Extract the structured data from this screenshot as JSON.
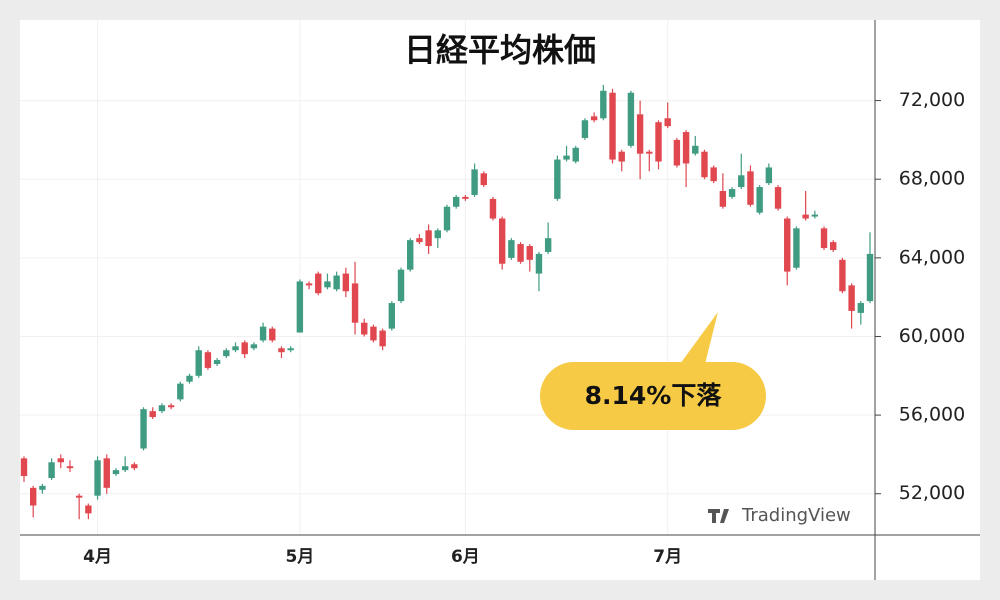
{
  "chart_data": {
    "type": "candlestick",
    "title": "日経平均株価",
    "annotation": "8.14%下落",
    "watermark": "TradingView",
    "up_color": "#3f9b81",
    "down_color": "#e0474f",
    "grid": true,
    "ylim": [
      49900,
      76100
    ],
    "yticks": [
      {
        "value": 52000,
        "label": "52,000"
      },
      {
        "value": 56000,
        "label": "56,000"
      },
      {
        "value": 60000,
        "label": "60,000"
      },
      {
        "value": 64000,
        "label": "64,000"
      },
      {
        "value": 68000,
        "label": "68,000"
      },
      {
        "value": 72000,
        "label": "72,000"
      }
    ],
    "categories": [
      null,
      null,
      null,
      null,
      null,
      null,
      null,
      null,
      "4月",
      null,
      null,
      null,
      null,
      null,
      null,
      null,
      null,
      null,
      null,
      null,
      null,
      null,
      null,
      null,
      null,
      null,
      null,
      null,
      null,
      null,
      "5月",
      null,
      null,
      null,
      null,
      null,
      null,
      null,
      null,
      null,
      null,
      null,
      null,
      null,
      null,
      null,
      null,
      null,
      "6月",
      null,
      null,
      null,
      null,
      null,
      null,
      null,
      null,
      null,
      null,
      null,
      null,
      null,
      null,
      null,
      null,
      null,
      null,
      null,
      null,
      null,
      "7月",
      null,
      null,
      null,
      null,
      null,
      null,
      null,
      null,
      null,
      null,
      null,
      null,
      null,
      null,
      null,
      null,
      null,
      null,
      null,
      null,
      null,
      null
    ],
    "ohlc": [
      [
        53800,
        53900,
        52600,
        52900
      ],
      [
        52300,
        52400,
        50800,
        51400
      ],
      [
        52200,
        52500,
        52000,
        52400
      ],
      [
        52800,
        53800,
        52700,
        53600
      ],
      [
        53800,
        54000,
        53300,
        53600
      ],
      [
        53400,
        53700,
        53100,
        53300
      ],
      [
        51900,
        52000,
        50700,
        51800
      ],
      [
        51400,
        51500,
        50700,
        51000
      ],
      [
        51900,
        53900,
        51700,
        53700
      ],
      [
        53800,
        54000,
        52000,
        52300
      ],
      [
        53000,
        53300,
        52900,
        53200
      ],
      [
        53200,
        53900,
        53100,
        53400
      ],
      [
        53500,
        53600,
        53200,
        53300
      ],
      [
        54300,
        56400,
        54200,
        56300
      ],
      [
        56200,
        56400,
        55800,
        55900
      ],
      [
        56200,
        56600,
        56100,
        56500
      ],
      [
        56500,
        56600,
        56300,
        56400
      ],
      [
        56800,
        57700,
        56700,
        57600
      ],
      [
        57700,
        58100,
        57600,
        58000
      ],
      [
        58000,
        59500,
        57900,
        59300
      ],
      [
        59200,
        59300,
        58300,
        58400
      ],
      [
        58600,
        58900,
        58500,
        58800
      ],
      [
        59000,
        59400,
        58900,
        59300
      ],
      [
        59300,
        59700,
        59200,
        59500
      ],
      [
        59700,
        59800,
        58900,
        59100
      ],
      [
        59400,
        59700,
        59300,
        59600
      ],
      [
        59800,
        60700,
        59700,
        60500
      ],
      [
        60400,
        60500,
        59700,
        59800
      ],
      [
        59400,
        59500,
        58900,
        59200
      ],
      [
        59300,
        59500,
        59200,
        59400
      ],
      [
        60200,
        62900,
        60200,
        62800
      ],
      [
        62700,
        62800,
        62400,
        62600
      ],
      [
        63200,
        63300,
        62100,
        62200
      ],
      [
        62500,
        63200,
        62400,
        62800
      ],
      [
        62400,
        63300,
        62300,
        63100
      ],
      [
        63200,
        63500,
        62000,
        62300
      ],
      [
        62700,
        63800,
        60100,
        60700
      ],
      [
        60700,
        60900,
        60000,
        60100
      ],
      [
        60500,
        60600,
        59700,
        59800
      ],
      [
        60300,
        60400,
        59300,
        59500
      ],
      [
        60400,
        61800,
        60300,
        61700
      ],
      [
        61800,
        63500,
        61700,
        63400
      ],
      [
        63400,
        65000,
        63300,
        64900
      ],
      [
        65000,
        65200,
        64700,
        64800
      ],
      [
        65400,
        65700,
        64200,
        64600
      ],
      [
        65000,
        65500,
        64500,
        65400
      ],
      [
        65400,
        66700,
        65300,
        66600
      ],
      [
        66600,
        67200,
        66500,
        67100
      ],
      [
        67100,
        67200,
        66900,
        67000
      ],
      [
        67200,
        68800,
        67100,
        68500
      ],
      [
        68300,
        68400,
        67600,
        67700
      ],
      [
        67000,
        67100,
        65900,
        66000
      ],
      [
        66000,
        66100,
        63400,
        63700
      ],
      [
        64000,
        65000,
        63900,
        64900
      ],
      [
        64700,
        64800,
        63700,
        63800
      ],
      [
        64600,
        64700,
        63300,
        63900
      ],
      [
        63200,
        64300,
        62300,
        64200
      ],
      [
        64300,
        65800,
        64200,
        65000
      ],
      [
        67000,
        69200,
        66900,
        69000
      ],
      [
        69000,
        69700,
        68900,
        69200
      ],
      [
        68900,
        69700,
        68800,
        69600
      ],
      [
        70100,
        71100,
        70000,
        71000
      ],
      [
        71200,
        71400,
        70900,
        71000
      ],
      [
        71100,
        72800,
        71000,
        72500
      ],
      [
        72400,
        72600,
        68800,
        69000
      ],
      [
        69400,
        69500,
        68400,
        68900
      ],
      [
        69700,
        72500,
        69600,
        72400
      ],
      [
        71300,
        72000,
        68000,
        69300
      ],
      [
        69400,
        69500,
        68400,
        69300
      ],
      [
        70900,
        71000,
        68500,
        68900
      ],
      [
        71100,
        71900,
        70600,
        70700
      ],
      [
        70000,
        70100,
        68600,
        68700
      ],
      [
        70400,
        70500,
        67600,
        68800
      ],
      [
        69300,
        70200,
        69200,
        69700
      ],
      [
        69400,
        69500,
        68000,
        68100
      ],
      [
        68600,
        68700,
        67800,
        67900
      ],
      [
        67400,
        68300,
        66500,
        66600
      ],
      [
        67100,
        67600,
        67000,
        67500
      ],
      [
        67600,
        69300,
        67500,
        68200
      ],
      [
        68400,
        68700,
        66600,
        66700
      ],
      [
        66300,
        67700,
        66200,
        67600
      ],
      [
        67800,
        68800,
        67700,
        68600
      ],
      [
        67600,
        67700,
        66400,
        66500
      ],
      [
        66000,
        66100,
        62600,
        63300
      ],
      [
        63500,
        65600,
        63400,
        65500
      ],
      [
        66200,
        67400,
        65900,
        66000
      ],
      [
        66100,
        66400,
        66000,
        66200
      ],
      [
        65500,
        65600,
        64400,
        64500
      ],
      [
        64800,
        64900,
        64300,
        64400
      ],
      [
        63900,
        64000,
        62200,
        62300
      ],
      [
        62600,
        62700,
        60400,
        61300
      ],
      [
        61200,
        61800,
        60600,
        61700
      ],
      [
        61800,
        65300,
        61700,
        64200
      ]
    ]
  }
}
